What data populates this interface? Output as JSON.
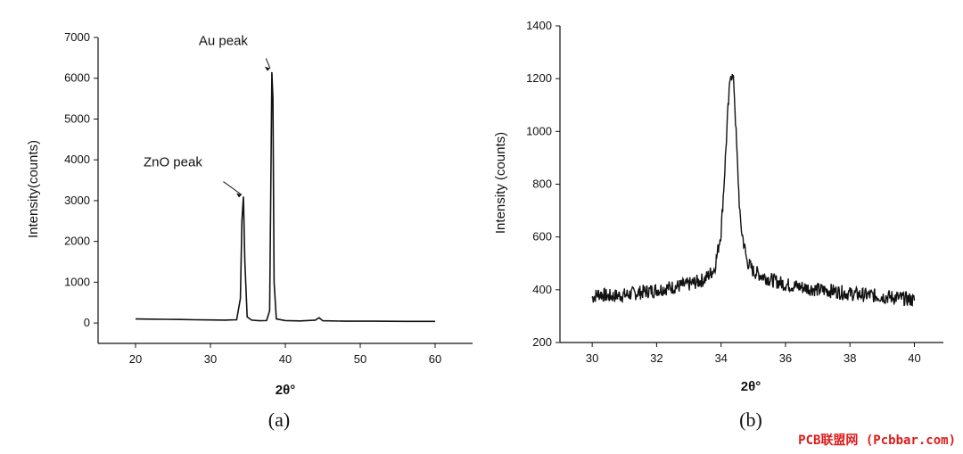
{
  "watermark": "PCB联盟网 (Pcbbar.com)",
  "chart_data": [
    {
      "type": "line",
      "caption": "(a)",
      "xlabel": "2θ°",
      "ylabel": "Intensity(counts)",
      "xlim": [
        15,
        65
      ],
      "ylim": [
        -500,
        7000
      ],
      "xticks": [
        20,
        30,
        40,
        50,
        60
      ],
      "yticks": [
        0,
        1000,
        2000,
        3000,
        4000,
        5000,
        6000,
        7000
      ],
      "annotations": [
        {
          "text": "ZnO peak",
          "x": 34.4,
          "y": 3100
        },
        {
          "text": "Au peak",
          "x": 38.2,
          "y": 6200
        }
      ],
      "series": [
        {
          "values": [
            [
              20,
              100
            ],
            [
              22,
              95
            ],
            [
              24,
              90
            ],
            [
              26,
              85
            ],
            [
              28,
              80
            ],
            [
              30,
              75
            ],
            [
              32,
              70
            ],
            [
              33.5,
              80
            ],
            [
              34.0,
              600
            ],
            [
              34.2,
              2500
            ],
            [
              34.4,
              3100
            ],
            [
              34.6,
              1500
            ],
            [
              34.9,
              150
            ],
            [
              35.5,
              70
            ],
            [
              36.5,
              55
            ],
            [
              37.5,
              60
            ],
            [
              37.9,
              300
            ],
            [
              38.1,
              4000
            ],
            [
              38.2,
              6150
            ],
            [
              38.35,
              5500
            ],
            [
              38.5,
              1000
            ],
            [
              38.8,
              100
            ],
            [
              40,
              60
            ],
            [
              42,
              50
            ],
            [
              44,
              70
            ],
            [
              44.5,
              130
            ],
            [
              45,
              55
            ],
            [
              48,
              45
            ],
            [
              52,
              45
            ],
            [
              56,
              40
            ],
            [
              60,
              40
            ]
          ]
        }
      ]
    },
    {
      "type": "line",
      "caption": "(b)",
      "xlabel": "2θ°",
      "ylabel": "Intensity (counts)",
      "xlim": [
        29,
        40.9
      ],
      "ylim": [
        200,
        1400
      ],
      "xticks": [
        30,
        32,
        34,
        36,
        38,
        40
      ],
      "yticks": [
        200,
        400,
        600,
        800,
        1000,
        1200,
        1400
      ],
      "series": [
        {
          "values": [
            [
              30,
              370
            ],
            [
              30.2,
              385
            ],
            [
              30.5,
              375
            ],
            [
              31,
              380
            ],
            [
              31.5,
              390
            ],
            [
              32,
              400
            ],
            [
              32.5,
              410
            ],
            [
              33,
              420
            ],
            [
              33.5,
              440
            ],
            [
              33.8,
              480
            ],
            [
              34.0,
              620
            ],
            [
              34.1,
              820
            ],
            [
              34.2,
              1050
            ],
            [
              34.3,
              1230
            ],
            [
              34.4,
              1180
            ],
            [
              34.5,
              900
            ],
            [
              34.6,
              650
            ],
            [
              34.8,
              510
            ],
            [
              35.0,
              470
            ],
            [
              35.5,
              440
            ],
            [
              36,
              420
            ],
            [
              36.5,
              410
            ],
            [
              37,
              400
            ],
            [
              37.5,
              395
            ],
            [
              38,
              385
            ],
            [
              38.5,
              380
            ],
            [
              39,
              375
            ],
            [
              39.5,
              370
            ],
            [
              40,
              360
            ]
          ]
        }
      ]
    }
  ]
}
